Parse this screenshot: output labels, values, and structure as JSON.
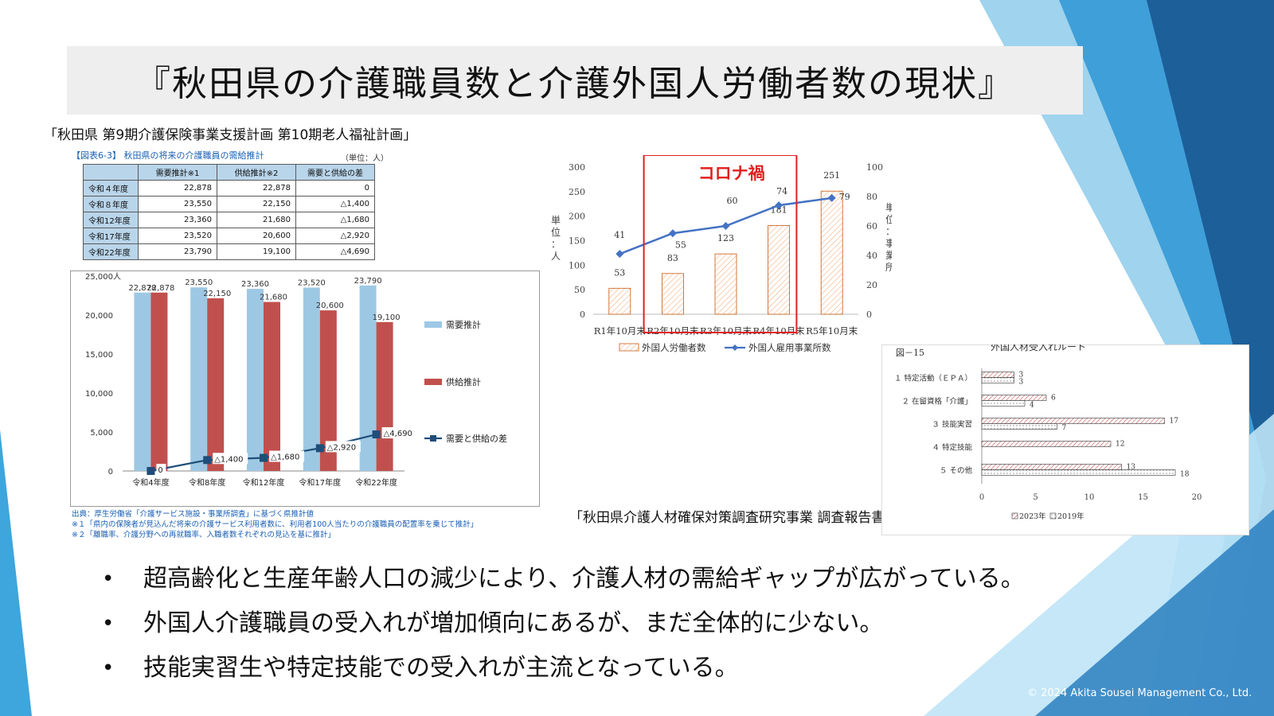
{
  "title": "『秋田県の介護職員数と介護外国人労働者数の現状』",
  "source_top": "「秋田県 第9期介護保険事業支援計画 第10期老人福祉計画」",
  "table": {
    "caption": "【図表6-3】 秋田県の将来の介護職員の需給推計",
    "unit": "（単位：人）",
    "headers": [
      "",
      "需要推計※1",
      "供給推計※2",
      "需要と供給の差"
    ],
    "rows": [
      [
        "令和４年度",
        "22,878",
        "22,878",
        "0"
      ],
      [
        "令和８年度",
        "23,550",
        "22,150",
        "△1,400"
      ],
      [
        "令和12年度",
        "23,360",
        "21,680",
        "△1,680"
      ],
      [
        "令和17年度",
        "23,520",
        "20,600",
        "△2,920"
      ],
      [
        "令和22年度",
        "23,790",
        "19,100",
        "△4,690"
      ]
    ]
  },
  "notes": [
    "出典：厚生労働省「介護サービス施設・事業所調査」に基づく県推計値",
    "※１「県内の保険者が見込んだ将来の介護サービス利用者数に、利用者100人当たりの介護職員の配置率を乗じて推計」",
    "※２「離職率、介護分野への再就職率、入職者数それぞれの見込を基に推計」"
  ],
  "source_mid": "「秋田県介護人材確保対策調査研究事業 調査報告書」",
  "bullets": [
    "超高齢化と生産年齢人口の減少により、介護人材の需給ギャップが広がっている。",
    "外国人介護職員の受入れが増加傾向にあるが、まだ全体的に少ない。",
    "技能実習生や特定技能での受入れが主流となっている。"
  ],
  "copyright": "© 2024 Akita Sousei Management Co., Ltd.",
  "colors": {
    "demand": "#9dc8e4",
    "supply": "#c0504d",
    "gap_line": "#1f4e79",
    "workers_bar": "#f4b183",
    "offices_line": "#4472c4",
    "corona_box": "#e02020",
    "deco_blue": "#2e86c1"
  },
  "chart_data": [
    {
      "type": "bar",
      "categories": [
        "令和4年度",
        "令和8年度",
        "令和12年度",
        "令和17年度",
        "令和22年度"
      ],
      "series": [
        {
          "name": "需要推計",
          "values": [
            22878,
            23550,
            23360,
            23520,
            23790
          ],
          "labels": [
            "22,878",
            "23,550",
            "23,360",
            "23,520",
            "23,790"
          ]
        },
        {
          "name": "供給推計",
          "values": [
            22878,
            22150,
            21680,
            20600,
            19100
          ],
          "labels": [
            "22,878",
            "22,150",
            "21,680",
            "20,600",
            "19,100"
          ]
        },
        {
          "name": "需要と供給の差",
          "kind": "line",
          "values": [
            0,
            1400,
            1680,
            2920,
            4690
          ],
          "labels": [
            "0",
            "△1,400",
            "△1,680",
            "△2,920",
            "△4,690"
          ]
        }
      ],
      "ylim": [
        0,
        25000
      ],
      "yticks": [
        "0",
        "5,000",
        "10,000",
        "15,000",
        "20,000",
        "25,000"
      ],
      "yunit": "人",
      "legend": "right"
    },
    {
      "type": "bar",
      "categories": [
        "R1年10月末",
        "R2年10月末",
        "R3年10月末",
        "R4年10月末",
        "R5年10月末"
      ],
      "series": [
        {
          "name": "外国人労働者数",
          "axis": "left",
          "values": [
            53,
            83,
            123,
            181,
            251
          ]
        },
        {
          "name": "外国人雇用事業所数",
          "kind": "line",
          "axis": "right",
          "values": [
            41,
            55,
            60,
            74,
            79
          ]
        }
      ],
      "ylim_left": [
        0,
        300
      ],
      "yticks_left": [
        "0",
        "50",
        "100",
        "150",
        "200",
        "250",
        "300"
      ],
      "ylim_right": [
        0,
        100
      ],
      "yticks_right": [
        "0",
        "20",
        "40",
        "60",
        "80",
        "100"
      ],
      "ylabel_left": "単位：人",
      "ylabel_right": "単位：事業所",
      "annotation": "コロナ禍",
      "legend": "bottom"
    },
    {
      "type": "bar",
      "orientation": "horizontal",
      "figure_label": "図－15",
      "title": "外国人材受入れルート",
      "categories": [
        "１ 特定活動（ＥＰＡ）",
        "２ 在留資格「介護」",
        "３ 技能実習",
        "４ 特定技能",
        "５ その他"
      ],
      "series": [
        {
          "name": "2023年",
          "values": [
            3,
            6,
            17,
            12,
            13
          ]
        },
        {
          "name": "2019年",
          "values": [
            3,
            4,
            7,
            null,
            18
          ]
        }
      ],
      "xlim": [
        0,
        20
      ],
      "xticks": [
        "0",
        "5",
        "10",
        "15",
        "20"
      ],
      "legend": "bottom"
    }
  ]
}
